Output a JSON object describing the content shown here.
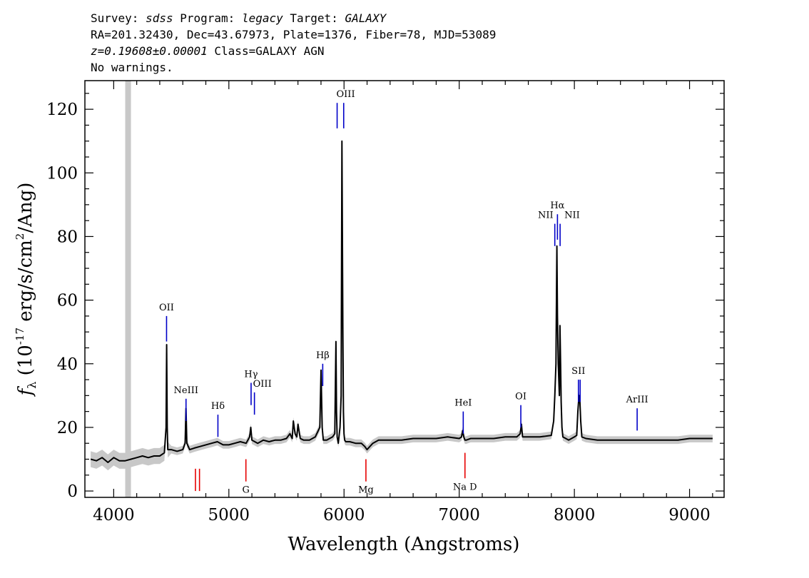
{
  "header": {
    "survey_label": "Survey:",
    "survey": "sdss",
    "program_label": "Program:",
    "program": "legacy",
    "target_label": "Target:",
    "target": "GALAXY",
    "line2": "RA=201.32430, Dec=43.67973, Plate=1376, Fiber=78, MJD=53089",
    "redshift": "z=0.19608±0.00001",
    "class": "Class=GALAXY AGN",
    "warnings": "No warnings."
  },
  "chart_data": {
    "type": "line",
    "title": "",
    "xlabel": "Wavelength (Angstroms)",
    "ylabel": "f",
    "ylabel_sub": "λ",
    "ylabel_units_pre": "(10",
    "ylabel_exp1": "-17",
    "ylabel_units_mid": " erg/s/cm",
    "ylabel_exp2": "2",
    "ylabel_units_post": "/Ang)",
    "xlim": [
      3750,
      9300
    ],
    "ylim": [
      -2,
      129
    ],
    "x_ticks": [
      4000,
      5000,
      6000,
      7000,
      8000,
      9000
    ],
    "x_tick_labels": [
      "4000",
      "5000",
      "6000",
      "7000",
      "8000",
      "9000"
    ],
    "y_ticks": [
      0,
      20,
      40,
      60,
      80,
      100,
      120
    ],
    "y_tick_labels": [
      "0",
      "20",
      "40",
      "60",
      "80",
      "100",
      "120"
    ],
    "masked_band": [
      4100,
      4150
    ],
    "series": [
      {
        "name": "flux",
        "color": "#000000",
        "x": [
          3800,
          3850,
          3900,
          3950,
          4000,
          4050,
          4100,
          4150,
          4200,
          4250,
          4300,
          4350,
          4400,
          4440,
          4455,
          4460,
          4465,
          4470,
          4500,
          4550,
          4600,
          4620,
          4628,
          4635,
          4660,
          4700,
          4750,
          4800,
          4850,
          4900,
          4950,
          5000,
          5050,
          5100,
          5150,
          5180,
          5190,
          5200,
          5250,
          5300,
          5350,
          5400,
          5450,
          5500,
          5530,
          5550,
          5560,
          5575,
          5590,
          5600,
          5620,
          5650,
          5700,
          5750,
          5790,
          5800,
          5810,
          5820,
          5850,
          5900,
          5920,
          5930,
          5935,
          5940,
          5950,
          5965,
          5975,
          5982,
          5990,
          5995,
          6000,
          6005,
          6015,
          6050,
          6100,
          6150,
          6180,
          6200,
          6250,
          6300,
          6400,
          6500,
          6600,
          6700,
          6800,
          6900,
          7000,
          7020,
          7030,
          7040,
          7050,
          7060,
          7100,
          7200,
          7300,
          7400,
          7500,
          7530,
          7540,
          7550,
          7600,
          7700,
          7800,
          7820,
          7830,
          7840,
          7848,
          7853,
          7860,
          7870,
          7875,
          7880,
          7885,
          7892,
          7900,
          7950,
          8000,
          8020,
          8030,
          8040,
          8048,
          8055,
          8065,
          8100,
          8200,
          8300,
          8400,
          8500,
          8600,
          8700,
          8800,
          8900,
          9000,
          9100,
          9200
        ],
        "y": [
          10,
          9.5,
          10.5,
          9,
          10.5,
          9.5,
          9.5,
          10,
          10.5,
          11,
          10.5,
          11,
          11,
          12,
          20,
          46,
          20,
          13,
          13,
          12.5,
          13,
          15,
          26,
          15,
          13,
          13.5,
          14,
          14.5,
          15,
          15.5,
          14.5,
          14.5,
          15,
          15.5,
          15,
          17,
          20,
          16,
          15,
          16,
          15.5,
          16,
          16,
          16.5,
          18,
          16.5,
          22,
          18,
          17,
          21,
          16.5,
          16,
          16,
          17,
          20,
          38,
          20,
          16,
          16,
          17,
          18,
          47,
          25,
          17,
          15,
          20,
          30,
          110,
          50,
          25,
          18,
          16,
          15.5,
          15.5,
          15,
          15,
          14,
          13,
          15,
          16,
          16,
          16,
          16.5,
          16.5,
          16.5,
          17,
          16.5,
          17,
          19,
          17,
          16,
          16,
          16.5,
          16.5,
          16.5,
          17,
          17,
          18,
          21,
          17,
          17,
          17,
          17.5,
          22,
          30,
          40,
          77,
          55,
          40,
          30,
          52,
          40,
          28,
          20,
          17,
          16,
          17,
          17.5,
          25,
          30,
          28,
          22,
          17,
          16.5,
          16,
          16,
          16,
          16,
          16,
          16,
          16,
          16,
          16.5,
          16.5,
          16.5
        ]
      }
    ],
    "emission_lines": [
      {
        "label": "OII",
        "wavelength": 4459,
        "tick_top": 55,
        "tick_bottom": 47
      },
      {
        "label": "NeIII",
        "wavelength": 4628,
        "tick_top": 29,
        "tick_bottom": 22
      },
      {
        "label": "Hδ",
        "wavelength": 4905,
        "tick_top": 24,
        "tick_bottom": 17
      },
      {
        "label": "Hγ",
        "wavelength": 5193,
        "tick_top": 34,
        "tick_bottom": 27
      },
      {
        "label": "OIII",
        "wavelength": 5222,
        "tick_top": 31,
        "tick_bottom": 24
      },
      {
        "label": "Hβ",
        "wavelength": 5815,
        "tick_top": 40,
        "tick_bottom": 33
      },
      {
        "label": "OIII",
        "wavelength": 5940,
        "tick_top": 122,
        "tick_bottom": 114
      },
      {
        "label": "",
        "wavelength": 5997,
        "tick_top": 122,
        "tick_bottom": 114
      },
      {
        "label": "HeI",
        "wavelength": 7035,
        "tick_top": 25,
        "tick_bottom": 18
      },
      {
        "label": "OI",
        "wavelength": 7535,
        "tick_top": 27,
        "tick_bottom": 20
      },
      {
        "label": "NII",
        "wavelength": 7830,
        "tick_top": 84,
        "tick_bottom": 77
      },
      {
        "label": "Hα",
        "wavelength": 7853,
        "tick_top": 87,
        "tick_bottom": 79
      },
      {
        "label": "NII",
        "wavelength": 7876,
        "tick_top": 84,
        "tick_bottom": 77
      },
      {
        "label": "SII",
        "wavelength": 8035,
        "tick_top": 35,
        "tick_bottom": 28
      },
      {
        "label": "",
        "wavelength": 8050,
        "tick_top": 35,
        "tick_bottom": 28
      },
      {
        "label": "ArIII",
        "wavelength": 8545,
        "tick_top": 26,
        "tick_bottom": 19
      }
    ],
    "absorption_lines": [
      {
        "label": "",
        "wavelength": 4710,
        "tick_top": 7,
        "tick_bottom": 0
      },
      {
        "label": "",
        "wavelength": 4745,
        "tick_top": 7,
        "tick_bottom": 0
      },
      {
        "label": "G",
        "wavelength": 5148,
        "tick_top": 10,
        "tick_bottom": 3
      },
      {
        "label": "Mg",
        "wavelength": 6190,
        "tick_top": 10,
        "tick_bottom": 3
      },
      {
        "label": "Na D",
        "wavelength": 7050,
        "tick_top": 12,
        "tick_bottom": 4
      }
    ],
    "colors": {
      "spectrum": "#000000",
      "noise": "#c8c8c8",
      "emission": "#0000c8",
      "absorption": "#e60000",
      "masked": "#c8c8c8"
    }
  }
}
